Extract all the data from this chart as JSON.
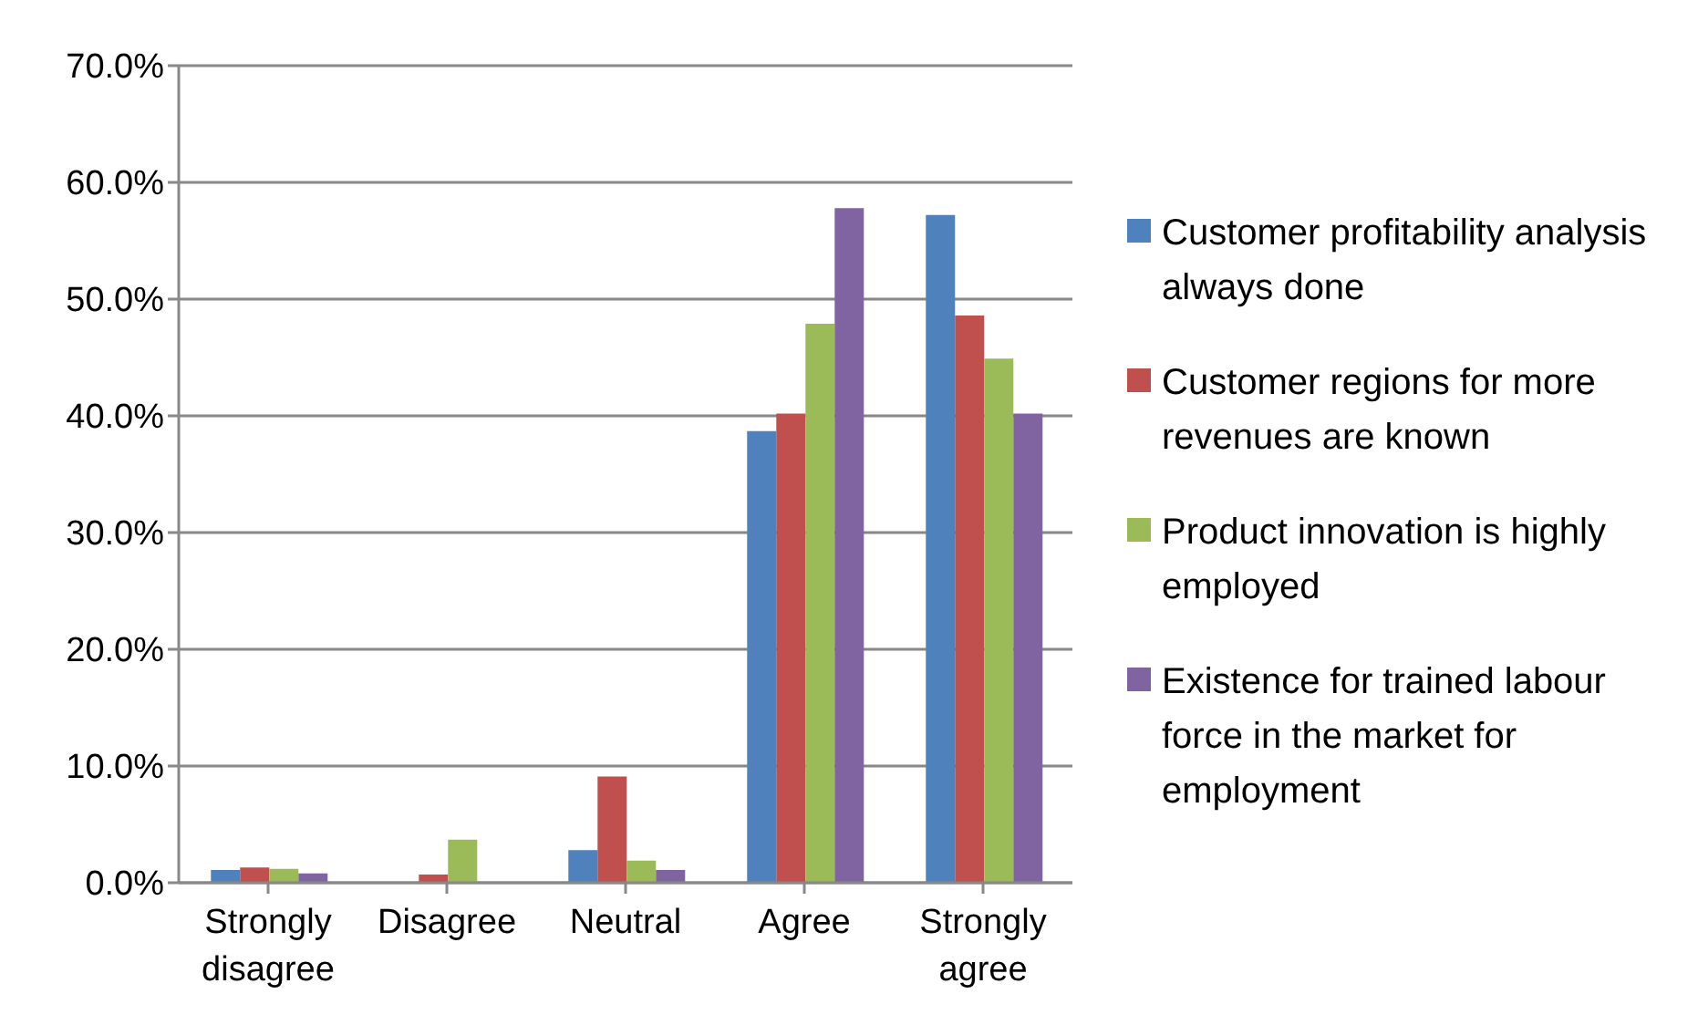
{
  "chart_data": {
    "type": "bar",
    "categories": [
      "Strongly disagree",
      "Disagree",
      "Neutral",
      "Agree",
      "Strongly agree"
    ],
    "series": [
      {
        "name": "Customer profitability analysis always done",
        "color": "#4f81bd",
        "values": [
          1.1,
          0,
          2.8,
          38.7,
          57.2
        ]
      },
      {
        "name": "Customer regions for more revenues are known",
        "color": "#c0504d",
        "values": [
          1.3,
          0.7,
          9.1,
          40.2,
          48.6
        ]
      },
      {
        "name": "Product innovation is highly employed",
        "color": "#9bbb59",
        "values": [
          1.2,
          3.7,
          1.9,
          47.9,
          44.9
        ]
      },
      {
        "name": "Existence for trained labour force in the market for employment",
        "color": "#8064a2",
        "values": [
          0.8,
          0,
          1.1,
          57.8,
          40.2
        ]
      }
    ],
    "ylim": [
      0,
      70
    ],
    "yticks": [
      {
        "value": 0,
        "label": "0.0%"
      },
      {
        "value": 10,
        "label": "10.0%"
      },
      {
        "value": 20,
        "label": "20.0%"
      },
      {
        "value": 30,
        "label": "30.0%"
      },
      {
        "value": 40,
        "label": "40.0%"
      },
      {
        "value": 50,
        "label": "50.0%"
      },
      {
        "value": 60,
        "label": "60.0%"
      },
      {
        "value": 70,
        "label": "70.0%"
      }
    ],
    "grid": "y",
    "legend": "right"
  }
}
